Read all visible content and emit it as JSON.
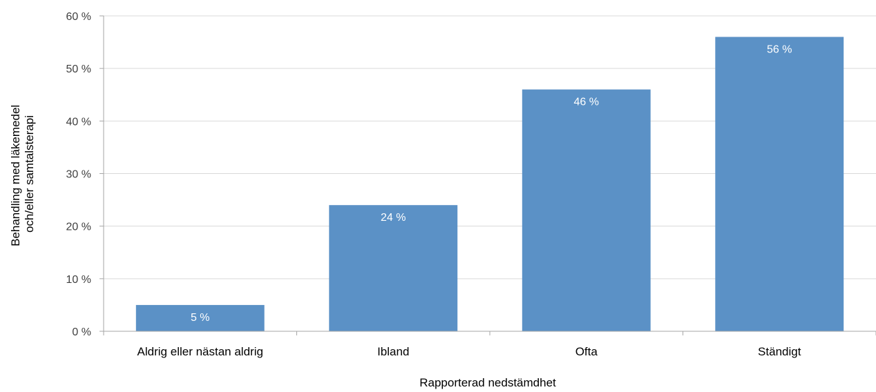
{
  "chart_data": {
    "type": "bar",
    "categories": [
      "Aldrig eller nästan aldrig",
      "Ibland",
      "Ofta",
      "Ständigt"
    ],
    "values": [
      5,
      24,
      46,
      56
    ],
    "data_labels": [
      "5 %",
      "24 %",
      "46 %",
      "56 %"
    ],
    "xlabel": "Rapporterad nedstämdhet",
    "ylabel_lines": [
      "Behandling med läkemedel",
      "och/eller samtalsterapi"
    ],
    "ylim": [
      0,
      60
    ],
    "yticks": [
      0,
      10,
      20,
      30,
      40,
      50,
      60
    ],
    "ytick_labels": [
      "0 %",
      "10 %",
      "20 %",
      "30 %",
      "40 %",
      "50 %",
      "60 %"
    ],
    "grid": true,
    "bar_color": "#5b91c6",
    "grid_color": "#d9d9d9",
    "axis_color": "#a6a6a6"
  }
}
